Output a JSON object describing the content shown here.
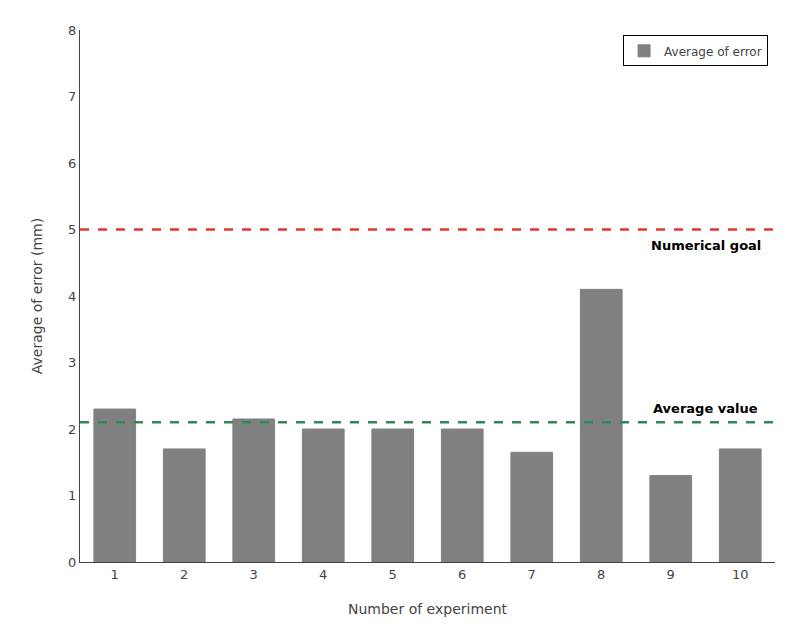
{
  "chart_data": {
    "type": "bar",
    "x": [
      1,
      2,
      3,
      4,
      5,
      6,
      7,
      8,
      9,
      10
    ],
    "series": [
      {
        "name": "Average of error",
        "color": "#808080",
        "values": [
          2.3,
          1.7,
          2.15,
          2.0,
          2.0,
          2.0,
          1.65,
          4.1,
          1.3,
          1.7
        ]
      }
    ],
    "xlabel": "Number of experiment",
    "ylabel": "Average of error (mm)",
    "xlim": [
      0.5,
      10.5
    ],
    "xticks": [
      1,
      2,
      3,
      4,
      5,
      6,
      7,
      8,
      9,
      10
    ],
    "ylim": [
      0,
      8
    ],
    "yticks": [
      0,
      1,
      2,
      3,
      4,
      5,
      6,
      7,
      8
    ],
    "reference_lines": [
      {
        "value": 5.0,
        "color": "#e63333",
        "line_style": "dashed",
        "label": "Numerical goal"
      },
      {
        "value": 2.1,
        "color": "#2e8b57",
        "line_style": "dashed",
        "label": "Average value"
      }
    ],
    "legend": "upper right",
    "grid": false
  }
}
